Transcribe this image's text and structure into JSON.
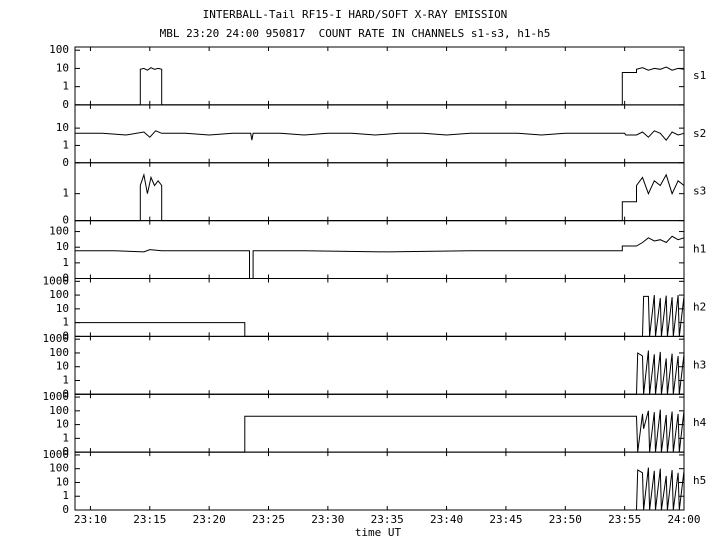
{
  "chart_data": {
    "type": "line",
    "title": "INTERBALL-Tail RF15-I HARD/SOFT X-RAY EMISSION",
    "subtitle": "MBL 23:20 24:00 950817  COUNT RATE IN CHANNELS s1-s3, h1-h5",
    "xlabel": "time UT",
    "yscale": "log",
    "color": "#000000",
    "xlim": [
      8.7,
      60
    ],
    "xticks": [
      {
        "value": 10,
        "label": "23:10"
      },
      {
        "value": 15,
        "label": "23:15"
      },
      {
        "value": 20,
        "label": "23:20"
      },
      {
        "value": 25,
        "label": "23:25"
      },
      {
        "value": 30,
        "label": "23:30"
      },
      {
        "value": 35,
        "label": "23:35"
      },
      {
        "value": 40,
        "label": "23:40"
      },
      {
        "value": 45,
        "label": "23:45"
      },
      {
        "value": 50,
        "label": "23:50"
      },
      {
        "value": 55,
        "label": "23:55"
      },
      {
        "value": 60,
        "label": "24:00"
      }
    ],
    "panels": [
      {
        "name": "s1",
        "ylim": [
          0,
          150
        ],
        "yticks": [
          0,
          1,
          10,
          100
        ],
        "x": [
          8.7,
          14.2,
          14.2,
          14.5,
          14.8,
          15.1,
          15.4,
          15.7,
          16,
          16,
          54.8,
          54.8,
          56,
          56,
          56.5,
          57,
          57.5,
          58,
          58.5,
          59,
          59.5,
          60
        ],
        "values": [
          0,
          0,
          9,
          10,
          8,
          11,
          9,
          10,
          9,
          0,
          0,
          6,
          6,
          9,
          11,
          8,
          10,
          9,
          12,
          8,
          10,
          9
        ]
      },
      {
        "name": "s2",
        "ylim": [
          0,
          220
        ],
        "yticks": [
          0,
          1,
          10
        ],
        "x": [
          8.7,
          11,
          13,
          14.5,
          15,
          15.5,
          16,
          18,
          20,
          22,
          23.5,
          23.6,
          23.7,
          26,
          28,
          30,
          32,
          34,
          36,
          38,
          40,
          42,
          44,
          46,
          48,
          50,
          52,
          54,
          55,
          55.1,
          56,
          56.5,
          57,
          57.5,
          58,
          58.5,
          59,
          59.5,
          60
        ],
        "values": [
          5,
          5,
          4,
          6,
          3,
          7,
          5,
          5,
          4,
          5,
          5,
          2,
          5,
          5,
          4,
          5,
          5,
          4,
          5,
          5,
          4,
          5,
          5,
          5,
          4,
          5,
          5,
          5,
          5,
          4,
          4,
          6,
          3,
          7,
          5,
          2,
          6,
          4,
          5
        ]
      },
      {
        "name": "s3",
        "ylim": [
          0,
          14
        ],
        "yticks": [
          0,
          1
        ],
        "x": [
          8.7,
          14.2,
          14.2,
          14.5,
          14.8,
          15.1,
          15.4,
          15.7,
          16,
          16,
          54.8,
          54.8,
          56,
          56,
          56.5,
          57,
          57.5,
          58,
          58.5,
          59,
          59.5,
          60
        ],
        "values": [
          0,
          0,
          2,
          5,
          1,
          4,
          2,
          3,
          2,
          0,
          0,
          0.5,
          0.5,
          2,
          4,
          1,
          3,
          2,
          5,
          1,
          3,
          2
        ]
      },
      {
        "name": "h1",
        "ylim": [
          0,
          500
        ],
        "yticks": [
          0,
          1,
          10,
          100
        ],
        "x": [
          8.7,
          12,
          14.5,
          15,
          16,
          20,
          23.4,
          23.4,
          23.7,
          23.7,
          28,
          35,
          42,
          50,
          54.8,
          54.8,
          56,
          56.5,
          57,
          57.5,
          58,
          58.5,
          59,
          59.5,
          60
        ],
        "values": [
          6,
          6,
          5,
          7,
          6,
          6,
          6,
          0,
          0,
          6,
          6,
          5,
          6,
          6,
          6,
          12,
          12,
          20,
          40,
          25,
          30,
          20,
          50,
          30,
          40
        ]
      },
      {
        "name": "h2",
        "ylim": [
          0,
          1600
        ],
        "yticks": [
          0,
          1,
          10,
          100,
          1000
        ],
        "x": [
          8.7,
          23,
          23,
          56.5,
          56.6,
          57,
          57.1,
          57.5,
          57.6,
          58,
          58.1,
          58.5,
          58.6,
          59,
          59.1,
          59.5,
          59.6,
          60
        ],
        "values": [
          1,
          1,
          0,
          0,
          80,
          80,
          0,
          100,
          0,
          60,
          0,
          90,
          0,
          70,
          0,
          100,
          0,
          80
        ]
      },
      {
        "name": "h3",
        "ylim": [
          0,
          1600
        ],
        "yticks": [
          0,
          1,
          10,
          100,
          1000
        ],
        "x": [
          8.7,
          56,
          56.1,
          56.5,
          56.6,
          57,
          57.1,
          57.5,
          57.6,
          58,
          58.1,
          58.5,
          58.6,
          59,
          59.1,
          59.5,
          59.6,
          60
        ],
        "values": [
          0,
          0,
          100,
          60,
          0,
          150,
          0,
          80,
          0,
          120,
          0,
          40,
          0,
          90,
          0,
          60,
          0,
          80
        ]
      },
      {
        "name": "h4",
        "ylim": [
          0,
          1600
        ],
        "yticks": [
          0,
          1,
          10,
          100,
          1000
        ],
        "x": [
          8.7,
          23,
          23,
          56,
          56.1,
          56.5,
          56.6,
          57,
          57.1,
          57.5,
          57.6,
          58,
          58.1,
          58.5,
          58.6,
          59,
          59.1,
          59.5,
          59.6,
          60
        ],
        "values": [
          0,
          0,
          40,
          40,
          0,
          60,
          5,
          100,
          0,
          80,
          0,
          120,
          0,
          50,
          0,
          90,
          0,
          60,
          0,
          100
        ]
      },
      {
        "name": "h5",
        "ylim": [
          0,
          1600
        ],
        "yticks": [
          0,
          1,
          10,
          100,
          1000
        ],
        "x": [
          8.7,
          56,
          56.1,
          56.5,
          56.6,
          57,
          57.1,
          57.5,
          57.6,
          58,
          58.1,
          58.5,
          58.6,
          59,
          59.1,
          59.5,
          59.6,
          60
        ],
        "values": [
          0,
          0,
          80,
          50,
          0,
          120,
          0,
          70,
          0,
          100,
          0,
          30,
          0,
          80,
          0,
          50,
          0,
          70
        ]
      }
    ]
  }
}
